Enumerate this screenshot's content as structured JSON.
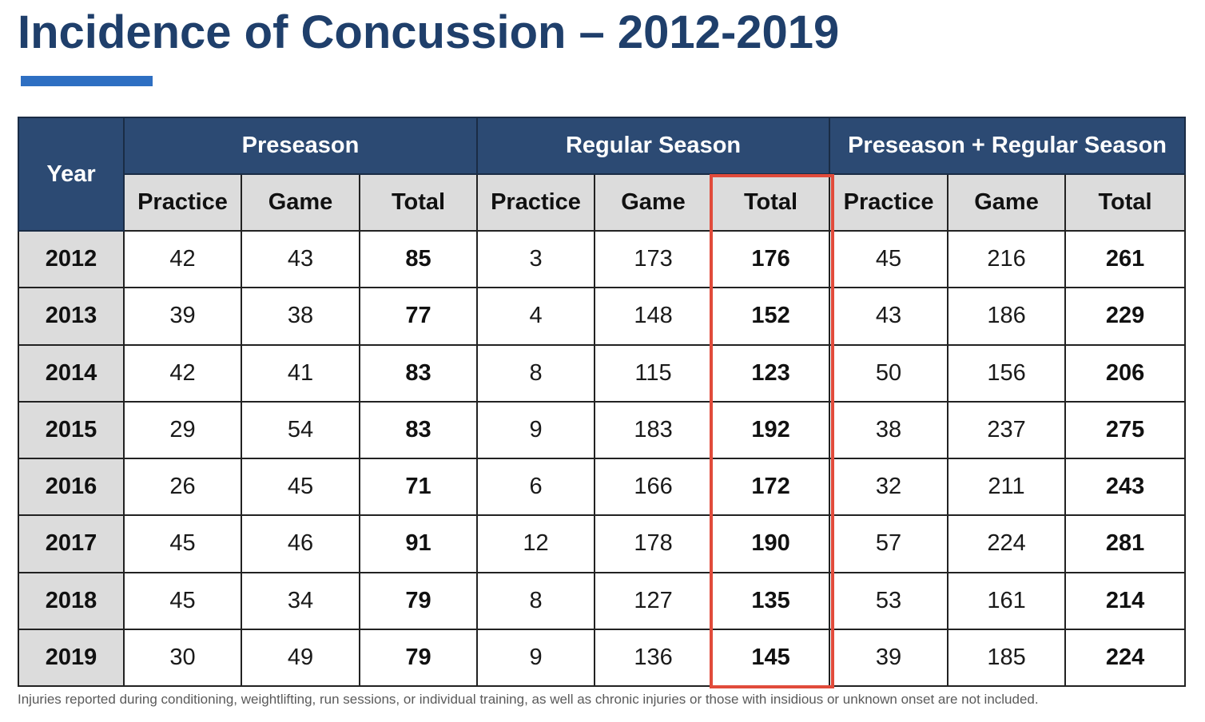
{
  "title": "Incidence of Concussion – 2012-2019",
  "colors": {
    "title": "#1f3f6b",
    "accent_bar": "#2e6fc2",
    "header_bg": "#2c4a73",
    "subheader_bg": "#dcdcdc",
    "highlight": "#e14b3b"
  },
  "table": {
    "year_header": "Year",
    "groups": [
      "Preseason",
      "Regular Season",
      "Preseason + Regular Season"
    ],
    "subheaders": [
      "Practice",
      "Game",
      "Total",
      "Practice",
      "Game",
      "Total",
      "Practice",
      "Game",
      "Total"
    ],
    "highlighted_column": "Regular Season Total",
    "rows": [
      [
        "2012",
        "42",
        "43",
        "85",
        "3",
        "173",
        "176",
        "45",
        "216",
        "261"
      ],
      [
        "2013",
        "39",
        "38",
        "77",
        "4",
        "148",
        "152",
        "43",
        "186",
        "229"
      ],
      [
        "2014",
        "42",
        "41",
        "83",
        "8",
        "115",
        "123",
        "50",
        "156",
        "206"
      ],
      [
        "2015",
        "29",
        "54",
        "83",
        "9",
        "183",
        "192",
        "38",
        "237",
        "275"
      ],
      [
        "2016",
        "26",
        "45",
        "71",
        "6",
        "166",
        "172",
        "32",
        "211",
        "243"
      ],
      [
        "2017",
        "45",
        "46",
        "91",
        "12",
        "178",
        "190",
        "57",
        "224",
        "281"
      ],
      [
        "2018",
        "45",
        "34",
        "79",
        "8",
        "127",
        "135",
        "53",
        "161",
        "214"
      ],
      [
        "2019",
        "30",
        "49",
        "79",
        "9",
        "136",
        "145",
        "39",
        "185",
        "224"
      ]
    ]
  },
  "footnote": "Injuries reported during conditioning, weightlifting, run sessions, or individual training, as well as chronic injuries or those with insidious or unknown onset are not included."
}
